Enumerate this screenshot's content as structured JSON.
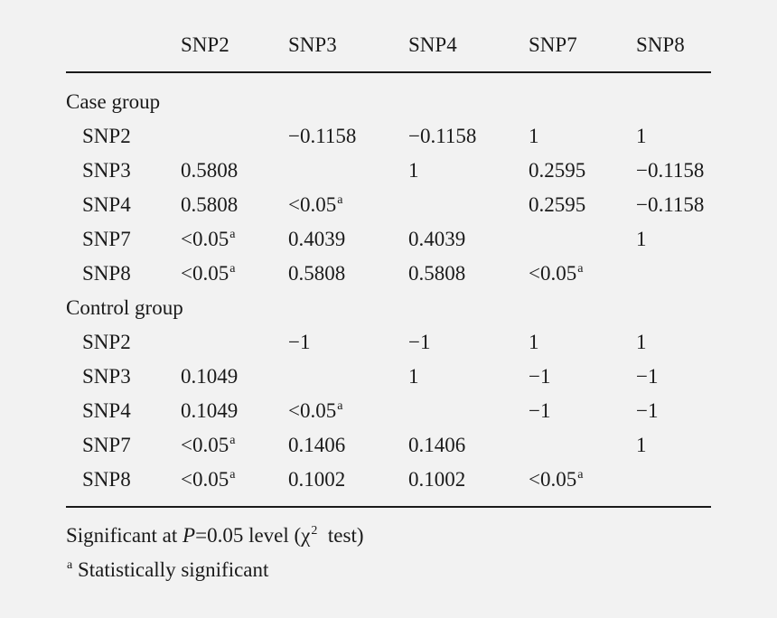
{
  "header": [
    "SNP2",
    "SNP3",
    "SNP4",
    "SNP7",
    "SNP8"
  ],
  "groups": [
    {
      "label": "Case group",
      "rows": [
        {
          "name": "SNP2",
          "cells": [
            {
              "v": ""
            },
            {
              "v": "−0.1158"
            },
            {
              "v": "−0.1158"
            },
            {
              "v": "1"
            },
            {
              "v": "1"
            }
          ]
        },
        {
          "name": "SNP3",
          "cells": [
            {
              "v": "0.5808"
            },
            {
              "v": ""
            },
            {
              "v": "1"
            },
            {
              "v": "0.2595"
            },
            {
              "v": "−0.1158"
            }
          ]
        },
        {
          "name": "SNP4",
          "cells": [
            {
              "v": "0.5808"
            },
            {
              "v": "<0.05",
              "sup": "a"
            },
            {
              "v": ""
            },
            {
              "v": "0.2595"
            },
            {
              "v": "−0.1158"
            }
          ]
        },
        {
          "name": "SNP7",
          "cells": [
            {
              "v": "<0.05",
              "sup": "a"
            },
            {
              "v": "0.4039"
            },
            {
              "v": "0.4039"
            },
            {
              "v": ""
            },
            {
              "v": "1"
            }
          ]
        },
        {
          "name": "SNP8",
          "cells": [
            {
              "v": "<0.05",
              "sup": "a"
            },
            {
              "v": "0.5808"
            },
            {
              "v": "0.5808"
            },
            {
              "v": "<0.05",
              "sup": "a"
            },
            {
              "v": ""
            }
          ]
        }
      ]
    },
    {
      "label": "Control group",
      "rows": [
        {
          "name": "SNP2",
          "cells": [
            {
              "v": ""
            },
            {
              "v": "−1"
            },
            {
              "v": "−1"
            },
            {
              "v": "1"
            },
            {
              "v": "1"
            }
          ]
        },
        {
          "name": "SNP3",
          "cells": [
            {
              "v": "0.1049"
            },
            {
              "v": ""
            },
            {
              "v": "1"
            },
            {
              "v": "−1"
            },
            {
              "v": "−1"
            }
          ]
        },
        {
          "name": "SNP4",
          "cells": [
            {
              "v": "0.1049"
            },
            {
              "v": "<0.05",
              "sup": "a"
            },
            {
              "v": ""
            },
            {
              "v": "−1"
            },
            {
              "v": "−1"
            }
          ]
        },
        {
          "name": "SNP7",
          "cells": [
            {
              "v": "<0.05",
              "sup": "a"
            },
            {
              "v": "0.1406"
            },
            {
              "v": "0.1406"
            },
            {
              "v": ""
            },
            {
              "v": "1"
            }
          ]
        },
        {
          "name": "SNP8",
          "cells": [
            {
              "v": "<0.05",
              "sup": "a"
            },
            {
              "v": "0.1002"
            },
            {
              "v": "0.1002"
            },
            {
              "v": "<0.05",
              "sup": "a"
            },
            {
              "v": ""
            }
          ]
        }
      ]
    }
  ],
  "footnote": {
    "line1_prefix": "Significant at ",
    "line1_p": "P",
    "line1_mid": "=0.05 level (χ",
    "line1_sup": "2",
    "line1_suffix": "  test)",
    "line2_sup": "a",
    "line2_text": " Statistically significant"
  }
}
